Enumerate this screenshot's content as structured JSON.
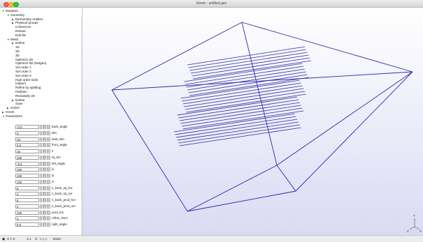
{
  "window": {
    "title": "Gmsh - untitled.geo"
  },
  "tree": {
    "items": [
      {
        "label": "Modules",
        "level": 0,
        "toggle": "open"
      },
      {
        "label": "Geometry",
        "level": 1,
        "toggle": "open"
      },
      {
        "label": "Elementary entities",
        "level": 2,
        "toggle": "closed"
      },
      {
        "label": "Physical groups",
        "level": 2,
        "toggle": "closed"
      },
      {
        "label": "Coherence",
        "level": 2,
        "toggle": ""
      },
      {
        "label": "Reload",
        "level": 2,
        "toggle": ""
      },
      {
        "label": "Edit file",
        "level": 2,
        "toggle": ""
      },
      {
        "label": "Mesh",
        "level": 1,
        "toggle": "open"
      },
      {
        "label": "Define",
        "level": 2,
        "toggle": "closed"
      },
      {
        "label": "1D",
        "level": 2,
        "toggle": ""
      },
      {
        "label": "2D",
        "level": 2,
        "toggle": ""
      },
      {
        "label": "3D",
        "level": 2,
        "toggle": ""
      },
      {
        "label": "Optimize 3D",
        "level": 2,
        "toggle": ""
      },
      {
        "label": "Optimize 3D (Netgen)",
        "level": 2,
        "toggle": ""
      },
      {
        "label": "Set order 1",
        "level": 2,
        "toggle": ""
      },
      {
        "label": "Set order 2",
        "level": 2,
        "toggle": ""
      },
      {
        "label": "Set order 3",
        "level": 2,
        "toggle": ""
      },
      {
        "label": "High order tools",
        "level": 2,
        "toggle": ""
      },
      {
        "label": "Inspect",
        "level": 2,
        "toggle": ""
      },
      {
        "label": "Refine by splitting",
        "level": 2,
        "toggle": ""
      },
      {
        "label": "Partition",
        "level": 2,
        "toggle": ""
      },
      {
        "label": "Reclassify 2D",
        "level": 2,
        "toggle": ""
      },
      {
        "label": "Delete",
        "level": 2,
        "toggle": "closed"
      },
      {
        "label": "Save",
        "level": 2,
        "toggle": ""
      },
      {
        "label": "Solver",
        "level": 1,
        "toggle": "closed"
      },
      {
        "label": "Gmsh",
        "level": 0,
        "toggle": "closed"
      },
      {
        "label": "Parameters",
        "level": 0,
        "toggle": "open"
      }
    ]
  },
  "parameters": [
    {
      "value": "-0.5",
      "label": "back_angle"
    },
    {
      "value": "3",
      "label": "dim"
    },
    {
      "value": "10",
      "label": "dust_min"
    },
    {
      "value": "0.5",
      "label": "front_angle"
    },
    {
      "value": "10",
      "label": "h"
    },
    {
      "value": "100",
      "label": "inj_len"
    },
    {
      "value": "-0.5",
      "label": "left_angle"
    },
    {
      "value": "100",
      "label": "lx"
    },
    {
      "value": "100",
      "label": "ly"
    },
    {
      "value": "100",
      "label": "lz"
    },
    {
      "value": "6",
      "label": "n_back_inj_hor"
    },
    {
      "value": "4",
      "label": "n_back_inj_ver"
    },
    {
      "value": "6",
      "label": "n_back_prod_hor"
    },
    {
      "value": "4",
      "label": "n_back_prod_ver"
    },
    {
      "value": "100",
      "label": "prod_len"
    },
    {
      "value": "1",
      "label": "refine_timer"
    },
    {
      "value": "0.5",
      "label": "right_angle"
    }
  ],
  "param_buttons": {
    "spin": "",
    "a": "C",
    "b": "L"
  },
  "gear_label": "⚙ ▾",
  "status": {
    "axes": "X Y Z",
    "scale": "1:1",
    "s_label": "S",
    "message": "Done"
  },
  "axes": {
    "x": "X",
    "y": "Y",
    "z": "Z"
  },
  "colors": {
    "lines": "#2a2aa8",
    "bg_top": "#ffffff",
    "bg_bottom": "#dadaf4"
  }
}
